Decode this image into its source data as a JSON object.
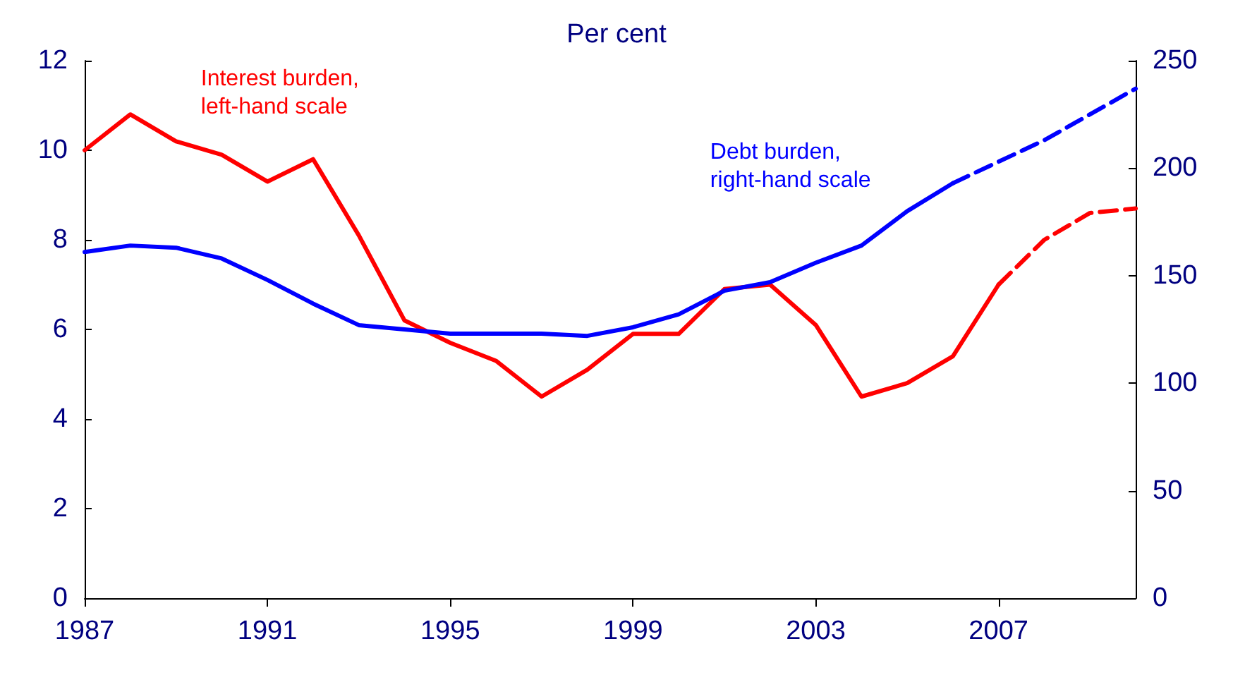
{
  "chart_data": {
    "type": "line",
    "title": "Per cent",
    "xlim": [
      1987,
      2010
    ],
    "xticks": [
      1987,
      1991,
      1995,
      1999,
      2003,
      2007
    ],
    "ylim": [
      0,
      12
    ],
    "yticks": [
      0,
      2,
      4,
      6,
      8,
      10,
      12
    ],
    "y2lim": [
      0,
      250
    ],
    "y2ticks": [
      0,
      50,
      100,
      150,
      200,
      250
    ],
    "grid": false,
    "marker": "none",
    "series": [
      {
        "name": "Interest burden, left-hand scale",
        "color": "#ff0000",
        "line_style": "solid",
        "x": [
          1987,
          1988,
          1989,
          1990,
          1991,
          1992,
          1993,
          1994,
          1995,
          1996,
          1997,
          1998,
          1999,
          2000,
          2001,
          2002,
          2003,
          2004,
          2005,
          2006,
          2007
        ],
        "values": [
          10.0,
          10.8,
          10.2,
          9.9,
          9.3,
          9.8,
          8.1,
          6.2,
          5.7,
          5.3,
          4.5,
          5.1,
          5.9,
          5.9,
          6.9,
          7.0,
          6.1,
          4.5,
          4.8,
          5.4,
          7.0
        ]
      },
      {
        "color": "#ff0000",
        "line_style": "dashed",
        "x": [
          2007,
          2008,
          2009,
          2010
        ],
        "values": [
          7.0,
          8.0,
          8.6,
          8.7
        ]
      },
      {
        "name": "Debt burden, right-hand scale",
        "color": "#0000ff",
        "line_style": "solid",
        "axis": "y2",
        "x": [
          1987,
          1988,
          1989,
          1990,
          1991,
          1992,
          1993,
          1994,
          1995,
          1996,
          1997,
          1998,
          1999,
          2000,
          2001,
          2002,
          2003,
          2004,
          2005,
          2006
        ],
        "values": [
          161,
          164,
          163,
          158,
          148,
          137,
          127,
          125,
          123,
          123,
          123,
          122,
          126,
          132,
          143,
          147,
          156,
          164,
          180,
          193
        ]
      },
      {
        "color": "#0000ff",
        "line_style": "dashed",
        "axis": "y2",
        "x": [
          2006,
          2007,
          2008,
          2009,
          2010
        ],
        "values": [
          193,
          203,
          213,
          225,
          237
        ]
      }
    ]
  }
}
